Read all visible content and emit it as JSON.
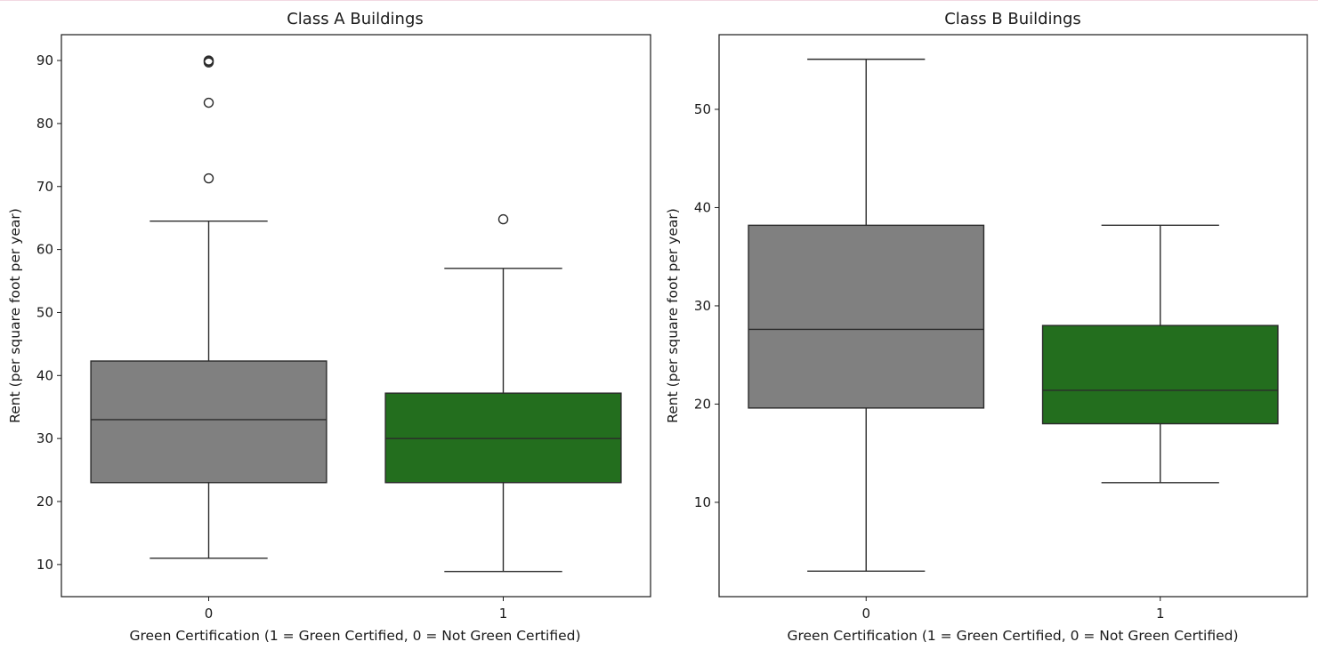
{
  "chart_data": [
    {
      "type": "box",
      "title": "Class A Buildings",
      "xlabel": "Green Certification (1 = Green Certified, 0 = Not Green Certified)",
      "ylabel": "Rent (per square foot per year)",
      "categories": [
        "0",
        "1"
      ],
      "ylim": [
        4.9,
        94.1
      ],
      "yticks": [
        10,
        20,
        30,
        40,
        50,
        60,
        70,
        80,
        90
      ],
      "grid": false,
      "boxes": [
        {
          "category": "0",
          "color": "#808080",
          "whisker_low": 11.0,
          "q1": 23.0,
          "median": 33.0,
          "q3": 42.3,
          "whisker_high": 64.5,
          "outliers": [
            71.3,
            83.3,
            89.7,
            89.9,
            90.0
          ]
        },
        {
          "category": "1",
          "color": "#236e1e",
          "whisker_low": 8.9,
          "q1": 23.0,
          "median": 30.0,
          "q3": 37.2,
          "whisker_high": 57.0,
          "outliers": [
            64.8
          ]
        }
      ]
    },
    {
      "type": "box",
      "title": "Class B Buildings",
      "xlabel": "Green Certification (1 = Green Certified, 0 = Not Green Certified)",
      "ylabel": "Rent (per square foot per year)",
      "categories": [
        "0",
        "1"
      ],
      "ylim": [
        0.4,
        57.6
      ],
      "yticks": [
        10,
        20,
        30,
        40,
        50
      ],
      "grid": false,
      "boxes": [
        {
          "category": "0",
          "color": "#808080",
          "whisker_low": 3.0,
          "q1": 19.6,
          "median": 27.6,
          "q3": 38.2,
          "whisker_high": 55.1,
          "outliers": []
        },
        {
          "category": "1",
          "color": "#236e1e",
          "whisker_low": 12.0,
          "q1": 18.0,
          "median": 21.4,
          "q3": 28.0,
          "whisker_high": 38.2,
          "outliers": []
        }
      ]
    }
  ]
}
